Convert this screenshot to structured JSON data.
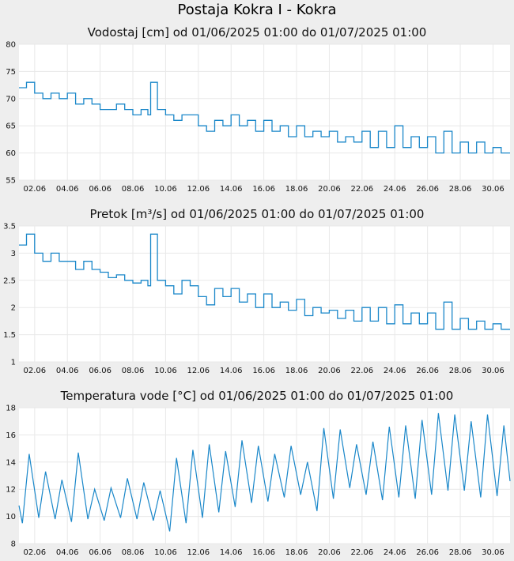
{
  "page": {
    "title": "Postaja Kokra I - Kokra"
  },
  "colors": {
    "line": "#1a87c9",
    "plot_background": "#ffffff",
    "grid": "#e8e8e8",
    "page_background": "#eeeeee"
  },
  "chart_data": [
    {
      "type": "line",
      "title": "Vodostaj [cm] od 01/06/2025 01:00 do 01/07/2025 01:00",
      "xlabel": "",
      "ylabel": "",
      "x_start": "2025-06-01 01:00",
      "x_end": "2025-07-01 01:00",
      "xticks": [
        "02.06",
        "04.06",
        "06.06",
        "08.06",
        "10.06",
        "12.06",
        "14.06",
        "16.06",
        "18.06",
        "20.06",
        "22.06",
        "24.06",
        "26.06",
        "28.06",
        "30.06"
      ],
      "ylim": [
        55,
        80
      ],
      "yticks": [
        "55",
        "60",
        "65",
        "70",
        "75",
        "80"
      ],
      "grid": true,
      "step": true,
      "series": [
        {
          "x": [
            "2025-06-01 01:00",
            "2025-06-01 12:00",
            "2025-06-02 00:00",
            "2025-06-02 12:00",
            "2025-06-03 00:00",
            "2025-06-03 12:00",
            "2025-06-04 00:00",
            "2025-06-04 12:00",
            "2025-06-05 00:00",
            "2025-06-05 12:00",
            "2025-06-06 00:00",
            "2025-06-06 12:00",
            "2025-06-07 00:00",
            "2025-06-07 12:00",
            "2025-06-08 00:00",
            "2025-06-08 12:00",
            "2025-06-08 22:00",
            "2025-06-09 02:00",
            "2025-06-09 12:00",
            "2025-06-10 00:00",
            "2025-06-10 12:00",
            "2025-06-11 00:00",
            "2025-06-11 12:00",
            "2025-06-12 00:00",
            "2025-06-12 12:00",
            "2025-06-13 00:00",
            "2025-06-13 12:00",
            "2025-06-14 00:00",
            "2025-06-14 12:00",
            "2025-06-15 00:00",
            "2025-06-15 12:00",
            "2025-06-16 00:00",
            "2025-06-16 12:00",
            "2025-06-17 00:00",
            "2025-06-17 12:00",
            "2025-06-18 00:00",
            "2025-06-18 12:00",
            "2025-06-19 00:00",
            "2025-06-19 12:00",
            "2025-06-20 00:00",
            "2025-06-20 12:00",
            "2025-06-21 00:00",
            "2025-06-21 12:00",
            "2025-06-22 00:00",
            "2025-06-22 12:00",
            "2025-06-23 00:00",
            "2025-06-23 12:00",
            "2025-06-24 00:00",
            "2025-06-24 12:00",
            "2025-06-25 00:00",
            "2025-06-25 12:00",
            "2025-06-26 00:00",
            "2025-06-26 12:00",
            "2025-06-27 00:00",
            "2025-06-27 12:00",
            "2025-06-28 00:00",
            "2025-06-28 12:00",
            "2025-06-29 00:00",
            "2025-06-29 12:00",
            "2025-06-30 00:00",
            "2025-06-30 12:00",
            "2025-07-01 01:00"
          ],
          "y": [
            72,
            73,
            71,
            70,
            71,
            70,
            71,
            69,
            70,
            69,
            68,
            68,
            69,
            68,
            67,
            68,
            67,
            73,
            68,
            67,
            66,
            67,
            67,
            65,
            64,
            66,
            65,
            67,
            65,
            66,
            64,
            66,
            64,
            65,
            63,
            65,
            63,
            64,
            63,
            64,
            62,
            63,
            62,
            64,
            61,
            64,
            61,
            65,
            61,
            63,
            61,
            63,
            60,
            64,
            60,
            62,
            60,
            62,
            60,
            61,
            60,
            60
          ]
        }
      ]
    },
    {
      "type": "line",
      "title": "Pretok [m³/s] od 01/06/2025 01:00 do 01/07/2025 01:00",
      "xlabel": "",
      "ylabel": "",
      "x_start": "2025-06-01 01:00",
      "x_end": "2025-07-01 01:00",
      "xticks": [
        "02.06",
        "04.06",
        "06.06",
        "08.06",
        "10.06",
        "12.06",
        "14.06",
        "16.06",
        "18.06",
        "20.06",
        "22.06",
        "24.06",
        "26.06",
        "28.06",
        "30.06"
      ],
      "ylim": [
        1,
        3.5
      ],
      "yticks": [
        "1",
        "1.5",
        "2",
        "2.5",
        "3",
        "3.5"
      ],
      "grid": true,
      "step": true,
      "series": [
        {
          "x": [
            "2025-06-01 01:00",
            "2025-06-01 12:00",
            "2025-06-02 00:00",
            "2025-06-02 12:00",
            "2025-06-03 00:00",
            "2025-06-03 12:00",
            "2025-06-04 00:00",
            "2025-06-04 12:00",
            "2025-06-05 00:00",
            "2025-06-05 12:00",
            "2025-06-06 00:00",
            "2025-06-06 12:00",
            "2025-06-07 00:00",
            "2025-06-07 12:00",
            "2025-06-08 00:00",
            "2025-06-08 12:00",
            "2025-06-08 22:00",
            "2025-06-09 02:00",
            "2025-06-09 12:00",
            "2025-06-10 00:00",
            "2025-06-10 12:00",
            "2025-06-11 00:00",
            "2025-06-11 12:00",
            "2025-06-12 00:00",
            "2025-06-12 12:00",
            "2025-06-13 00:00",
            "2025-06-13 12:00",
            "2025-06-14 00:00",
            "2025-06-14 12:00",
            "2025-06-15 00:00",
            "2025-06-15 12:00",
            "2025-06-16 00:00",
            "2025-06-16 12:00",
            "2025-06-17 00:00",
            "2025-06-17 12:00",
            "2025-06-18 00:00",
            "2025-06-18 12:00",
            "2025-06-19 00:00",
            "2025-06-19 12:00",
            "2025-06-20 00:00",
            "2025-06-20 12:00",
            "2025-06-21 00:00",
            "2025-06-21 12:00",
            "2025-06-22 00:00",
            "2025-06-22 12:00",
            "2025-06-23 00:00",
            "2025-06-23 12:00",
            "2025-06-24 00:00",
            "2025-06-24 12:00",
            "2025-06-25 00:00",
            "2025-06-25 12:00",
            "2025-06-26 00:00",
            "2025-06-26 12:00",
            "2025-06-27 00:00",
            "2025-06-27 12:00",
            "2025-06-28 00:00",
            "2025-06-28 12:00",
            "2025-06-29 00:00",
            "2025-06-29 12:00",
            "2025-06-30 00:00",
            "2025-06-30 12:00",
            "2025-07-01 01:00"
          ],
          "y": [
            3.15,
            3.35,
            3.0,
            2.85,
            3.0,
            2.85,
            2.85,
            2.7,
            2.85,
            2.7,
            2.65,
            2.55,
            2.6,
            2.5,
            2.45,
            2.5,
            2.4,
            3.35,
            2.5,
            2.4,
            2.25,
            2.5,
            2.4,
            2.2,
            2.05,
            2.35,
            2.2,
            2.35,
            2.1,
            2.25,
            2.0,
            2.25,
            2.0,
            2.1,
            1.95,
            2.15,
            1.85,
            2.0,
            1.9,
            1.95,
            1.8,
            1.95,
            1.75,
            2.0,
            1.75,
            2.0,
            1.7,
            2.05,
            1.7,
            1.9,
            1.7,
            1.9,
            1.6,
            2.1,
            1.6,
            1.8,
            1.6,
            1.75,
            1.6,
            1.7,
            1.6,
            1.6
          ]
        }
      ]
    },
    {
      "type": "line",
      "title": "Temperatura vode [°C] od 01/06/2025 01:00 do 01/07/2025 01:00",
      "xlabel": "",
      "ylabel": "",
      "x_start": "2025-06-01 01:00",
      "x_end": "2025-07-01 01:00",
      "xticks": [
        "02.06",
        "04.06",
        "06.06",
        "08.06",
        "10.06",
        "12.06",
        "14.06",
        "16.06",
        "18.06",
        "20.06",
        "22.06",
        "24.06",
        "26.06",
        "28.06",
        "30.06"
      ],
      "ylim": [
        8,
        18
      ],
      "yticks": [
        "8",
        "10",
        "12",
        "14",
        "16",
        "18"
      ],
      "grid": true,
      "step": false,
      "series": [
        {
          "x": [
            "2025-06-01 01:00",
            "2025-06-01 06:00",
            "2025-06-01 16:00",
            "2025-06-02 06:00",
            "2025-06-02 16:00",
            "2025-06-03 06:00",
            "2025-06-03 16:00",
            "2025-06-04 06:00",
            "2025-06-04 16:00",
            "2025-06-05 06:00",
            "2025-06-05 16:00",
            "2025-06-06 06:00",
            "2025-06-06 16:00",
            "2025-06-07 06:00",
            "2025-06-07 16:00",
            "2025-06-08 06:00",
            "2025-06-08 16:00",
            "2025-06-09 06:00",
            "2025-06-09 16:00",
            "2025-06-10 06:00",
            "2025-06-10 16:00",
            "2025-06-11 06:00",
            "2025-06-11 16:00",
            "2025-06-12 06:00",
            "2025-06-12 16:00",
            "2025-06-13 06:00",
            "2025-06-13 16:00",
            "2025-06-14 06:00",
            "2025-06-14 16:00",
            "2025-06-15 06:00",
            "2025-06-15 16:00",
            "2025-06-16 06:00",
            "2025-06-16 16:00",
            "2025-06-17 06:00",
            "2025-06-17 16:00",
            "2025-06-18 06:00",
            "2025-06-18 16:00",
            "2025-06-19 06:00",
            "2025-06-19 16:00",
            "2025-06-20 06:00",
            "2025-06-20 16:00",
            "2025-06-21 06:00",
            "2025-06-21 16:00",
            "2025-06-22 06:00",
            "2025-06-22 16:00",
            "2025-06-23 06:00",
            "2025-06-23 16:00",
            "2025-06-24 06:00",
            "2025-06-24 16:00",
            "2025-06-25 06:00",
            "2025-06-25 16:00",
            "2025-06-26 06:00",
            "2025-06-26 16:00",
            "2025-06-27 06:00",
            "2025-06-27 16:00",
            "2025-06-28 06:00",
            "2025-06-28 16:00",
            "2025-06-29 06:00",
            "2025-06-29 16:00",
            "2025-06-30 06:00",
            "2025-06-30 16:00",
            "2025-07-01 01:00"
          ],
          "y": [
            10.8,
            9.5,
            14.6,
            9.9,
            13.3,
            9.8,
            12.7,
            9.6,
            14.7,
            9.8,
            12.0,
            9.7,
            12.1,
            9.9,
            12.8,
            9.8,
            12.5,
            9.7,
            11.9,
            8.9,
            14.3,
            9.5,
            14.9,
            9.9,
            15.3,
            10.3,
            14.8,
            10.7,
            15.6,
            11.0,
            15.2,
            11.1,
            14.6,
            11.4,
            15.2,
            11.6,
            14.0,
            10.4,
            16.5,
            11.3,
            16.4,
            12.1,
            15.3,
            11.6,
            15.5,
            11.2,
            16.6,
            11.4,
            16.7,
            11.3,
            17.1,
            11.6,
            17.6,
            11.9,
            17.5,
            11.9,
            17.0,
            11.4,
            17.5,
            11.5,
            16.7,
            12.6
          ]
        }
      ]
    }
  ]
}
